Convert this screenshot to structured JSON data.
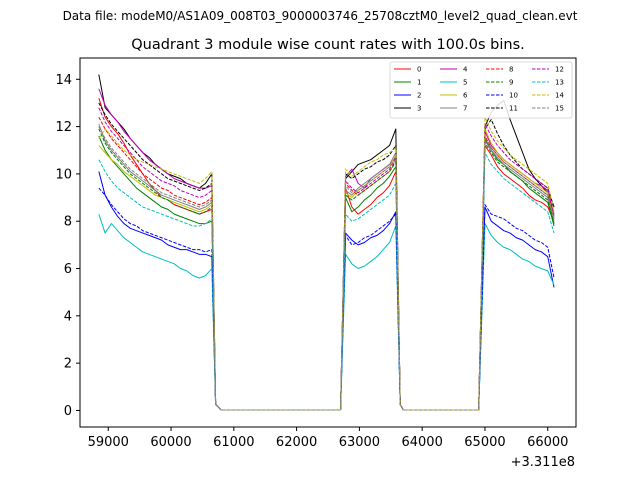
{
  "figure": {
    "suptitle": "Data file: modeM0/AS1A09_008T03_9000003746_25708cztM0_level2_quad_clean.evt"
  },
  "chart_data": {
    "type": "line",
    "title": "Quadrant 3 module wise count rates with 100.0s bins.",
    "xlabel": "",
    "ylabel": "",
    "x_offset_label": "+3.311e8",
    "xlim": [
      58550,
      66450
    ],
    "ylim": [
      -0.7,
      14.9
    ],
    "xticks": [
      59000,
      60000,
      61000,
      62000,
      63000,
      64000,
      65000,
      66000
    ],
    "xtick_labels": [
      "59000",
      "60000",
      "61000",
      "62000",
      "63000",
      "64000",
      "65000",
      "66000"
    ],
    "yticks": [
      0,
      2,
      4,
      6,
      8,
      10,
      12,
      14
    ],
    "ytick_labels": [
      "0",
      "2",
      "4",
      "6",
      "8",
      "10",
      "12",
      "14"
    ],
    "grid": false,
    "legend_position": "top-right",
    "segments": [
      {
        "start": 58850,
        "end": 60650,
        "drop_x": 60710,
        "drop_y": 0.25
      },
      {
        "start": 62780,
        "end": 63580,
        "drop_x": 63650,
        "drop_y": 0.25
      },
      {
        "start": 65000,
        "end": 66100,
        "drop_x": null,
        "drop_y": null
      }
    ],
    "gap_rate": 0.02,
    "gap_x": [
      60800,
      61000,
      61200,
      61400,
      61600,
      61800,
      62000,
      62200,
      62400,
      62600,
      62700,
      63700,
      63900,
      64100,
      64300,
      64500,
      64700,
      64900
    ],
    "series": [
      {
        "name": "0",
        "color": "#ff0000",
        "dash": "solid",
        "seg1": [
          13.2,
          12.4,
          12.0,
          11.7,
          11.3,
          10.8,
          10.4,
          10.0,
          9.6,
          9.3,
          9.0,
          8.9,
          8.7,
          8.6,
          8.5,
          8.4,
          8.3,
          8.4,
          8.5
        ],
        "seg2": [
          9.4,
          8.6,
          8.3,
          8.5,
          8.7,
          9.0,
          9.2,
          9.5,
          10.1
        ],
        "seg3": [
          11.2,
          10.8,
          10.3,
          10.0,
          9.8,
          9.6,
          9.4,
          9.1,
          8.9,
          8.8,
          8.6,
          8.0
        ]
      },
      {
        "name": "1",
        "color": "#008000",
        "dash": "solid",
        "seg1": [
          11.6,
          11.0,
          10.6,
          10.3,
          10.0,
          9.7,
          9.4,
          9.2,
          9.0,
          8.8,
          8.6,
          8.5,
          8.3,
          8.2,
          8.1,
          8.0,
          7.9,
          7.9,
          8.0
        ],
        "seg2": [
          9.0,
          8.4,
          8.6,
          8.9,
          9.1,
          9.4,
          9.6,
          9.9,
          10.3
        ],
        "seg3": [
          11.5,
          11.0,
          10.6,
          10.4,
          10.1,
          9.9,
          9.7,
          9.4,
          9.2,
          9.0,
          8.8,
          7.8
        ]
      },
      {
        "name": "2",
        "color": "#0000ff",
        "dash": "solid",
        "seg1": [
          10.1,
          9.1,
          8.6,
          8.2,
          7.9,
          7.7,
          7.6,
          7.5,
          7.4,
          7.3,
          7.2,
          7.0,
          6.9,
          6.8,
          6.8,
          6.7,
          6.6,
          6.6,
          6.5
        ],
        "seg2": [
          7.5,
          7.2,
          7.0,
          7.1,
          7.3,
          7.4,
          7.6,
          7.9,
          8.4
        ],
        "seg3": [
          8.6,
          8.0,
          7.8,
          7.6,
          7.5,
          7.3,
          7.2,
          7.0,
          6.8,
          6.7,
          6.5,
          5.2
        ]
      },
      {
        "name": "3",
        "color": "#000000",
        "dash": "solid",
        "seg1": [
          14.2,
          12.8,
          12.5,
          12.2,
          11.9,
          11.5,
          11.2,
          10.9,
          10.7,
          10.4,
          10.2,
          10.0,
          9.9,
          9.8,
          9.6,
          9.5,
          9.4,
          9.6,
          10.0
        ],
        "seg2": [
          9.8,
          10.1,
          10.4,
          10.5,
          10.6,
          10.8,
          11.0,
          11.2,
          11.9
        ],
        "seg3": [
          12.0,
          12.6,
          12.9,
          13.1,
          12.3,
          11.6,
          10.9,
          10.2,
          9.8,
          9.5,
          9.2,
          8.6
        ]
      },
      {
        "name": "4",
        "color": "#bf00bf",
        "dash": "solid",
        "seg1": [
          13.6,
          12.9,
          12.5,
          12.2,
          11.8,
          11.5,
          11.2,
          10.9,
          10.6,
          10.4,
          10.2,
          10.0,
          9.8,
          9.7,
          9.6,
          9.5,
          9.4,
          9.4,
          9.5
        ],
        "seg2": [
          9.9,
          10.2,
          9.6,
          9.4,
          9.8,
          10.0,
          10.2,
          10.4,
          10.7
        ],
        "seg3": [
          11.8,
          11.2,
          10.9,
          10.6,
          10.4,
          10.2,
          10.0,
          9.8,
          9.6,
          9.5,
          9.3,
          8.2
        ]
      },
      {
        "name": "5",
        "color": "#00bfbf",
        "dash": "solid",
        "seg1": [
          8.3,
          7.5,
          7.9,
          7.6,
          7.3,
          7.1,
          6.9,
          6.7,
          6.6,
          6.5,
          6.4,
          6.3,
          6.2,
          6.0,
          5.9,
          5.7,
          5.6,
          5.7,
          6.0
        ],
        "seg2": [
          6.6,
          6.2,
          6.0,
          6.1,
          6.3,
          6.5,
          6.8,
          7.1,
          7.8
        ],
        "seg3": [
          7.9,
          7.4,
          7.1,
          6.9,
          6.8,
          6.6,
          6.4,
          6.3,
          6.1,
          6.0,
          5.9,
          5.3
        ]
      },
      {
        "name": "6",
        "color": "#bfbf00",
        "dash": "solid",
        "seg1": [
          11.2,
          10.9,
          10.6,
          10.4,
          10.1,
          9.9,
          9.7,
          9.5,
          9.3,
          9.1,
          9.0,
          8.9,
          8.8,
          8.7,
          8.6,
          8.5,
          8.4,
          8.5,
          8.7
        ],
        "seg2": [
          9.2,
          9.0,
          9.3,
          9.5,
          9.7,
          9.9,
          10.1,
          10.3,
          10.8
        ],
        "seg3": [
          11.9,
          11.3,
          10.9,
          10.6,
          10.4,
          10.2,
          10.0,
          9.8,
          9.6,
          9.4,
          9.2,
          8.1
        ]
      },
      {
        "name": "7",
        "color": "#808080",
        "dash": "solid",
        "seg1": [
          12.1,
          11.4,
          11.0,
          10.7,
          10.4,
          10.1,
          9.9,
          9.7,
          9.5,
          9.3,
          9.1,
          9.0,
          8.9,
          8.8,
          8.7,
          8.6,
          8.5,
          8.6,
          8.8
        ],
        "seg2": [
          9.3,
          9.1,
          9.4,
          9.6,
          9.8,
          10.0,
          10.2,
          10.4,
          10.9
        ],
        "seg3": [
          11.4,
          11.0,
          10.7,
          10.4,
          10.2,
          10.0,
          9.8,
          9.6,
          9.4,
          9.2,
          9.0,
          8.0
        ]
      },
      {
        "name": "8",
        "color": "#ff0000",
        "dash": "dashed",
        "seg1": [
          12.4,
          11.9,
          11.5,
          11.2,
          10.9,
          10.6,
          10.3,
          10.0,
          9.8,
          9.6,
          9.4,
          9.3,
          9.1,
          9.0,
          8.9,
          8.8,
          8.7,
          8.8,
          9.0
        ],
        "seg2": [
          9.6,
          9.3,
          9.1,
          9.3,
          9.5,
          9.7,
          9.9,
          10.1,
          10.6
        ],
        "seg3": [
          11.6,
          11.1,
          10.8,
          10.5,
          10.3,
          10.1,
          9.9,
          9.7,
          9.5,
          9.3,
          9.1,
          8.3
        ]
      },
      {
        "name": "9",
        "color": "#008000",
        "dash": "dashed",
        "seg1": [
          11.9,
          11.3,
          10.9,
          10.6,
          10.3,
          10.0,
          9.8,
          9.6,
          9.4,
          9.2,
          9.0,
          8.9,
          8.7,
          8.6,
          8.5,
          8.4,
          8.3,
          8.4,
          8.6
        ],
        "seg2": [
          9.1,
          8.9,
          9.1,
          9.3,
          9.5,
          9.7,
          9.9,
          10.1,
          10.5
        ],
        "seg3": [
          11.3,
          10.9,
          10.5,
          10.3,
          10.1,
          9.9,
          9.7,
          9.5,
          9.3,
          9.1,
          8.9,
          7.9
        ]
      },
      {
        "name": "10",
        "color": "#0000ff",
        "dash": "dashed",
        "seg1": [
          9.4,
          9.1,
          8.7,
          8.4,
          8.1,
          7.9,
          7.8,
          7.6,
          7.5,
          7.4,
          7.3,
          7.2,
          7.1,
          7.0,
          6.9,
          6.8,
          6.8,
          6.7,
          6.8
        ],
        "seg2": [
          7.4,
          7.0,
          7.1,
          7.3,
          7.4,
          7.6,
          7.8,
          8.0,
          8.3
        ],
        "seg3": [
          8.7,
          8.3,
          8.2,
          8.1,
          7.9,
          7.7,
          7.6,
          7.4,
          7.2,
          7.1,
          6.9,
          5.6
        ]
      },
      {
        "name": "11",
        "color": "#000000",
        "dash": "dashed",
        "seg1": [
          13.0,
          12.5,
          12.1,
          11.8,
          11.5,
          11.2,
          10.9,
          10.6,
          10.4,
          10.2,
          10.0,
          9.8,
          9.7,
          9.6,
          9.5,
          9.4,
          9.3,
          9.4,
          9.6
        ],
        "seg2": [
          10.0,
          9.8,
          10.0,
          10.2,
          10.3,
          10.5,
          10.6,
          10.8,
          11.2
        ],
        "seg3": [
          11.9,
          12.3,
          11.7,
          11.2,
          10.8,
          10.5,
          10.2,
          10.0,
          9.8,
          9.6,
          9.4,
          8.6
        ]
      },
      {
        "name": "12",
        "color": "#bf00bf",
        "dash": "dashed",
        "seg1": [
          12.8,
          12.2,
          11.8,
          11.5,
          11.2,
          10.9,
          10.6,
          10.3,
          10.1,
          9.9,
          9.7,
          9.6,
          9.5,
          9.3,
          9.2,
          9.1,
          9.0,
          9.1,
          9.3
        ],
        "seg2": [
          9.7,
          9.4,
          9.2,
          9.4,
          9.6,
          9.8,
          10.0,
          10.2,
          10.7
        ],
        "seg3": [
          12.1,
          11.6,
          11.2,
          10.9,
          10.6,
          10.4,
          10.2,
          10.0,
          9.8,
          9.6,
          9.4,
          8.3
        ]
      },
      {
        "name": "13",
        "color": "#00bfbf",
        "dash": "dashed",
        "seg1": [
          10.6,
          10.1,
          9.7,
          9.4,
          9.2,
          9.0,
          8.8,
          8.6,
          8.5,
          8.4,
          8.3,
          8.2,
          8.1,
          8.0,
          7.9,
          7.8,
          7.8,
          7.9,
          8.1
        ],
        "seg2": [
          8.3,
          8.0,
          8.1,
          8.3,
          8.5,
          8.7,
          8.9,
          9.1,
          9.6
        ],
        "seg3": [
          10.9,
          10.4,
          10.1,
          9.8,
          9.6,
          9.4,
          9.2,
          9.0,
          8.8,
          8.6,
          8.4,
          7.5
        ]
      },
      {
        "name": "14",
        "color": "#bfbf00",
        "dash": "dashed",
        "seg1": [
          11.5,
          11.9,
          11.6,
          11.3,
          11.0,
          10.8,
          10.6,
          10.5,
          10.4,
          10.3,
          10.2,
          10.1,
          10.0,
          9.9,
          9.8,
          9.7,
          9.6,
          9.8,
          10.1
        ],
        "seg2": [
          10.2,
          9.9,
          10.1,
          10.3,
          10.5,
          10.6,
          10.8,
          10.9,
          11.1
        ],
        "seg3": [
          12.4,
          11.8,
          11.4,
          11.1,
          10.8,
          10.6,
          10.4,
          10.2,
          10.0,
          9.8,
          9.6,
          8.4
        ]
      },
      {
        "name": "15",
        "color": "#808080",
        "dash": "dashed",
        "seg1": [
          12.0,
          11.5,
          11.1,
          10.8,
          10.5,
          10.2,
          10.0,
          9.8,
          9.6,
          9.4,
          9.2,
          9.1,
          9.0,
          8.9,
          8.8,
          8.7,
          8.6,
          8.7,
          8.9
        ],
        "seg2": [
          9.5,
          9.2,
          9.3,
          9.5,
          9.7,
          9.9,
          10.1,
          10.3,
          10.6
        ],
        "seg3": [
          11.5,
          11.1,
          10.8,
          10.5,
          10.3,
          10.1,
          9.9,
          9.7,
          9.5,
          9.3,
          9.1,
          8.1
        ]
      }
    ]
  }
}
